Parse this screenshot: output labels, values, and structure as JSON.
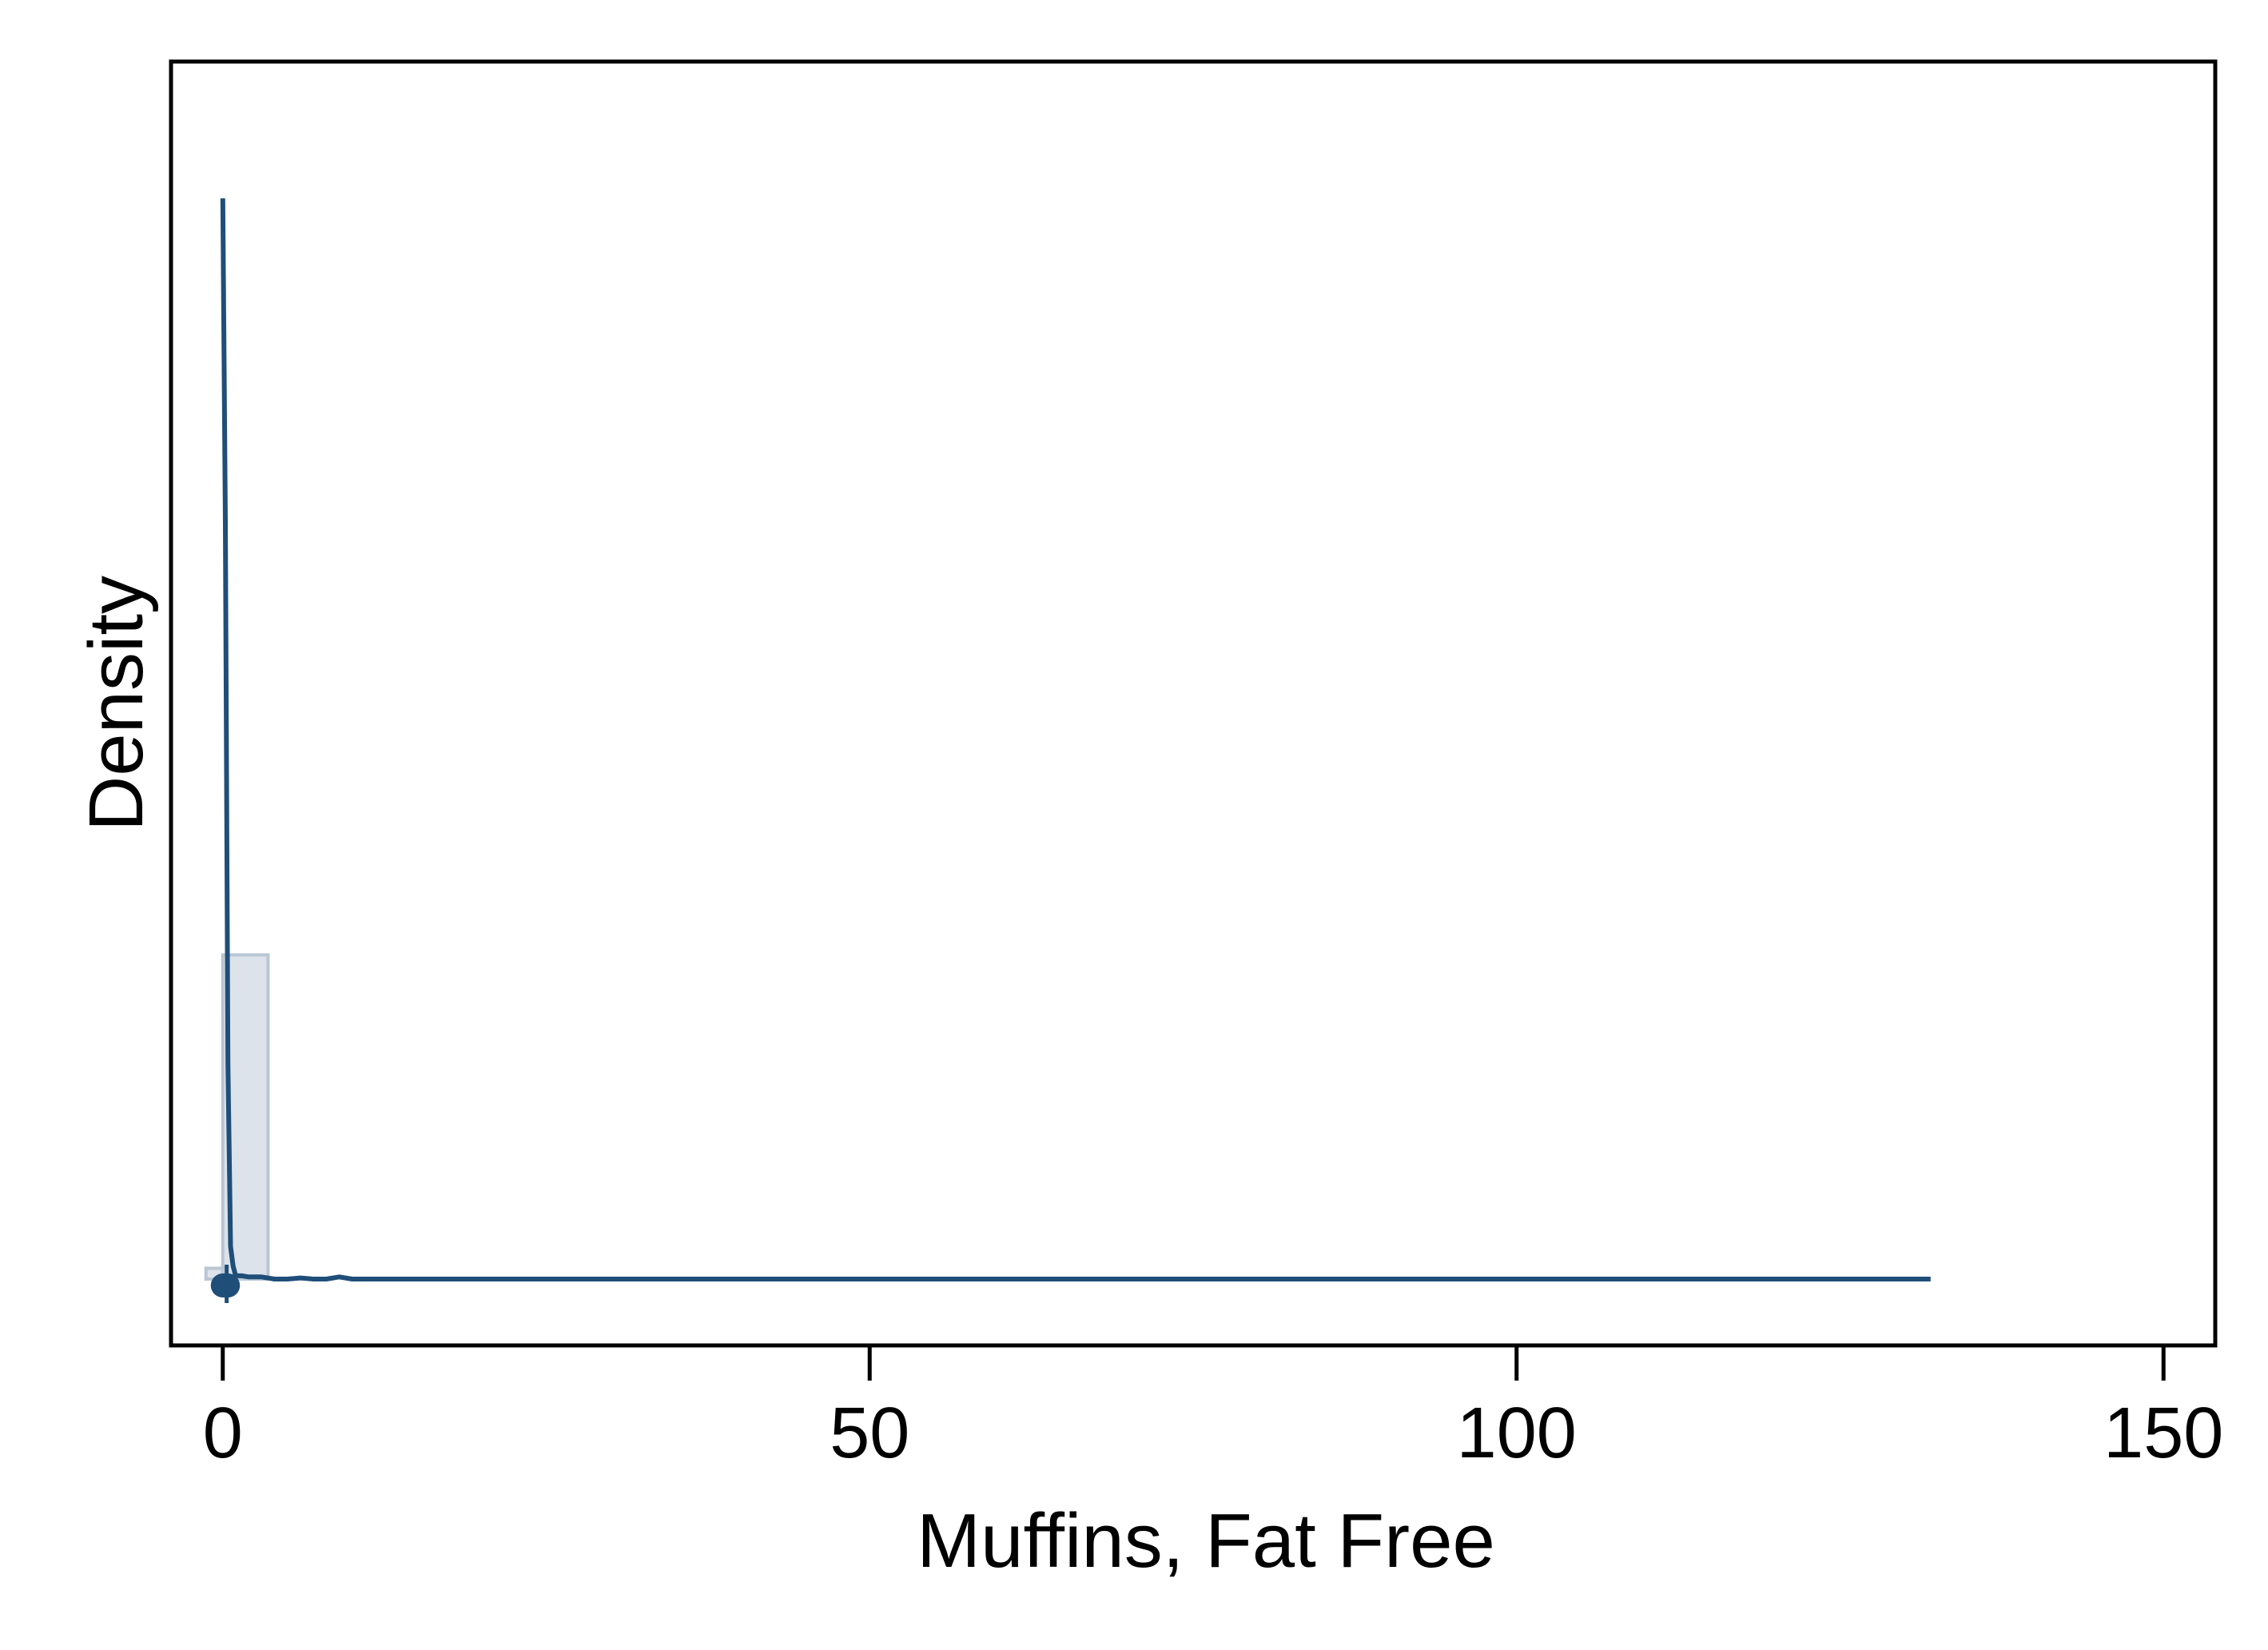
{
  "chart_data": {
    "type": "histogram",
    "xlabel": "Muffins, Fat Free",
    "ylabel": "Density",
    "xlim": [
      -4,
      154
    ],
    "x_ticks": [
      0,
      50,
      100,
      150
    ],
    "x_tick_labels": [
      "0",
      "50",
      "100",
      "150"
    ],
    "y_ticks_labeled": false,
    "grid": false,
    "legend": "none",
    "ylim": [
      0,
      1.08
    ],
    "histogram_bins": [
      {
        "x_start": -1.3,
        "x_end": 0.0,
        "density": 0.01
      },
      {
        "x_start": 0.0,
        "x_end": 3.5,
        "density": 0.3
      }
    ],
    "kde_line": {
      "x": [
        0.0,
        0.2,
        0.4,
        0.6,
        0.8,
        1.0,
        1.5,
        2.0,
        3.0,
        4.0,
        5.0,
        6.0,
        7.0,
        8.0,
        9.0,
        10.0,
        20.0,
        30.0,
        40.0,
        60.0,
        80.0,
        100.0,
        120.0,
        128.0,
        132.0
      ],
      "y": [
        1.0,
        0.7,
        0.2,
        0.03,
        0.012,
        0.003,
        0.003,
        0.002,
        0.002,
        0.0,
        0.0,
        0.001,
        0.0,
        0.0,
        0.002,
        0.0,
        0.0,
        0.0,
        0.0,
        0.0,
        0.0,
        0.0,
        0.0,
        0.0,
        0.0
      ]
    },
    "rug_points": [
      {
        "x": 0.0,
        "y": 0.0
      },
      {
        "x": 0.2,
        "y": 0.0
      },
      {
        "x": 0.4,
        "y": 0.0
      }
    ],
    "colors": {
      "line": "#1f4e79",
      "bar_fill": "#dde3eb",
      "bar_stroke": "#b9c6d3",
      "frame": "#000000",
      "point": "#1f4e79"
    }
  }
}
